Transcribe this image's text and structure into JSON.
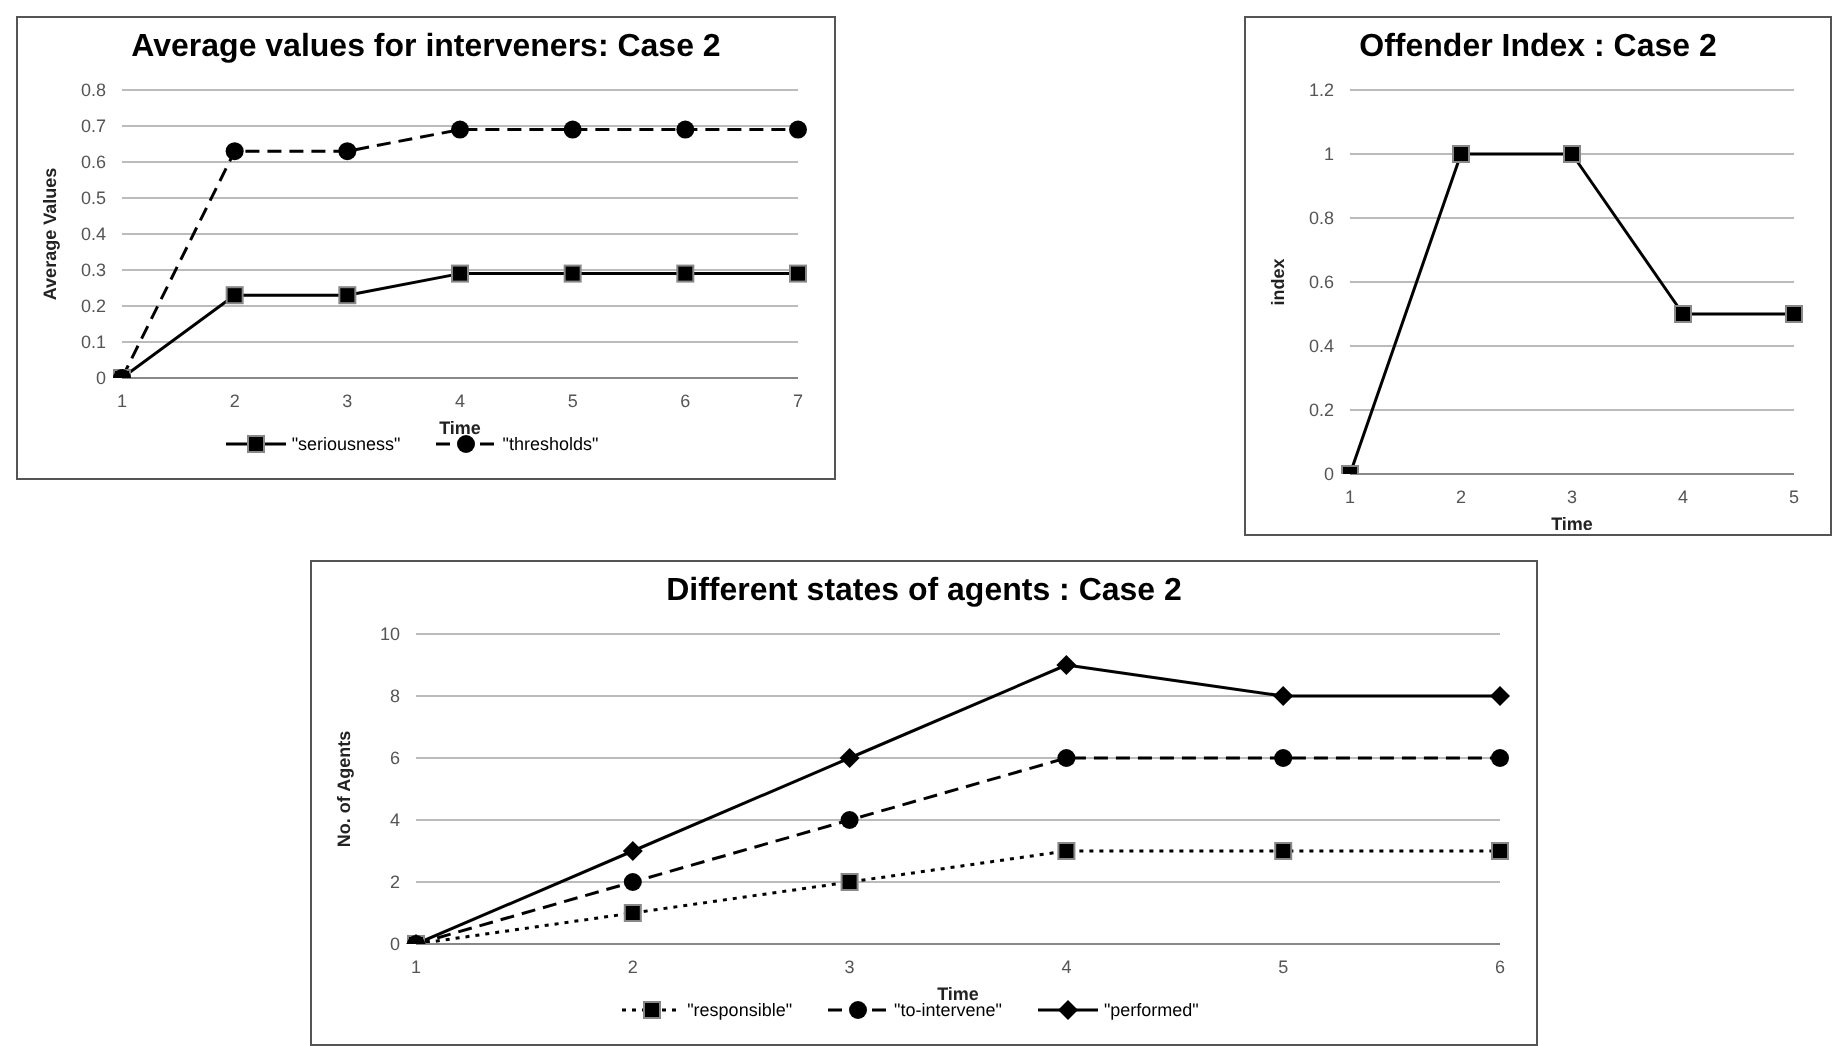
{
  "chart_data": [
    {
      "type": "line",
      "title": "Average values for interveners: Case 2",
      "xlabel": "Time",
      "ylabel": "Average Values",
      "categories": [
        "1",
        "2",
        "3",
        "4",
        "5",
        "6",
        "7"
      ],
      "series": [
        {
          "name": "\"seriousness\"",
          "color": "#000000",
          "marker": "square",
          "line_style": "solid",
          "values": [
            0,
            0.23,
            0.23,
            0.29,
            0.29,
            0.29,
            0.29
          ]
        },
        {
          "name": "\"thresholds\"",
          "color": "#000000",
          "marker": "circle",
          "line_style": "dashed",
          "values": [
            0,
            0.63,
            0.63,
            0.69,
            0.69,
            0.69,
            0.69
          ]
        }
      ],
      "ylim": [
        0,
        0.8
      ],
      "yticks": [
        0,
        0.1,
        0.2,
        0.3,
        0.4,
        0.5,
        0.6,
        0.7,
        0.8
      ],
      "grid": "y",
      "legend": "bottom"
    },
    {
      "type": "line",
      "title": "Offender Index : Case 2",
      "xlabel": "Time",
      "ylabel": "index",
      "categories": [
        "1",
        "2",
        "3",
        "4",
        "5"
      ],
      "series": [
        {
          "color": "#000000",
          "marker": "square",
          "line_style": "solid",
          "values": [
            0,
            1,
            1,
            0.5,
            0.5
          ]
        }
      ],
      "ylim": [
        0,
        1.2
      ],
      "yticks": [
        0,
        0.2,
        0.4,
        0.6,
        0.8,
        1,
        1.2
      ],
      "grid": "y"
    },
    {
      "type": "line",
      "title": "Different states of agents : Case 2",
      "xlabel": "Time",
      "ylabel": "No. of Agents",
      "categories": [
        "1",
        "2",
        "3",
        "4",
        "5",
        "6"
      ],
      "series": [
        {
          "name": "\"responsible\"",
          "color": "#000000",
          "marker": "square",
          "line_style": "dotted",
          "values": [
            0,
            1,
            2,
            3,
            3,
            3
          ]
        },
        {
          "name": "\"to-intervene\"",
          "color": "#000000",
          "marker": "circle",
          "line_style": "dashed",
          "values": [
            0,
            2,
            4,
            6,
            6,
            6
          ]
        },
        {
          "name": "\"performed\"",
          "color": "#000000",
          "marker": "diamond",
          "line_style": "solid",
          "values": [
            0,
            3,
            6,
            9,
            8,
            8
          ]
        }
      ],
      "ylim": [
        0,
        10
      ],
      "yticks": [
        0,
        2,
        4,
        6,
        8,
        10
      ],
      "grid": "y",
      "legend": "bottom"
    }
  ]
}
